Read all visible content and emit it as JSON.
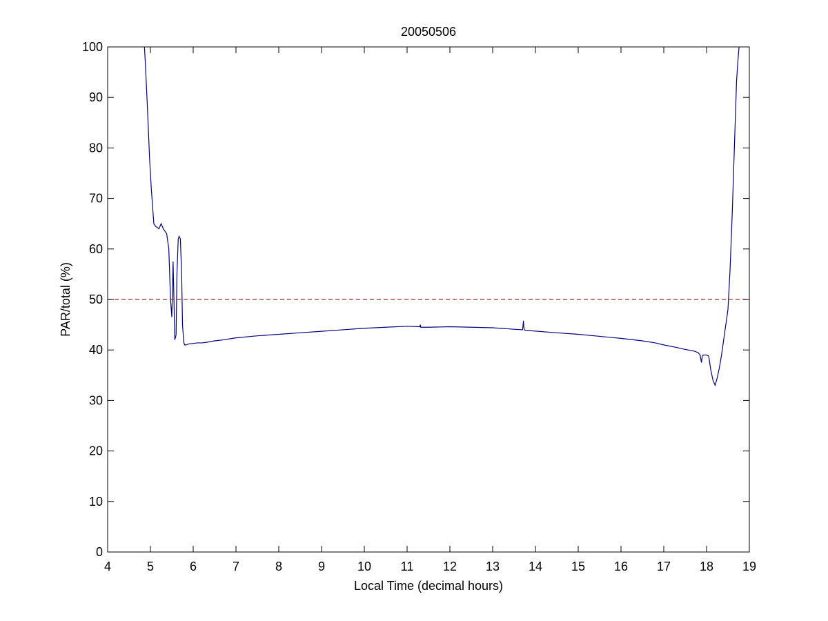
{
  "chart_data": {
    "type": "line",
    "title": "20050506",
    "xlabel": "Local Time (decimal hours)",
    "ylabel": "PAR/total (%)",
    "xlim": [
      4,
      19
    ],
    "ylim": [
      0,
      100
    ],
    "xticks": [
      4,
      5,
      6,
      7,
      8,
      9,
      10,
      11,
      12,
      13,
      14,
      15,
      16,
      17,
      18,
      19
    ],
    "yticks": [
      0,
      10,
      20,
      30,
      40,
      50,
      60,
      70,
      80,
      90,
      100
    ],
    "grid": false,
    "legend": "none",
    "series": [
      {
        "color": "#00007f",
        "x": [
          4.86,
          4.88,
          4.93,
          4.98,
          5.02,
          5.08,
          5.12,
          5.2,
          5.25,
          5.3,
          5.38,
          5.43,
          5.47,
          5.5,
          5.53,
          5.55,
          5.57,
          5.6,
          5.62,
          5.65,
          5.67,
          5.7,
          5.73,
          5.75,
          5.78,
          5.8,
          5.83,
          5.86,
          5.9,
          6.0,
          6.1,
          6.2,
          6.3,
          6.5,
          6.7,
          7.0,
          7.5,
          8.0,
          8.5,
          9.0,
          9.5,
          10.0,
          10.5,
          11.0,
          11.3,
          11.31,
          11.32,
          11.5,
          12.0,
          12.5,
          13.0,
          13.5,
          13.7,
          13.72,
          13.73,
          13.74,
          13.76,
          13.9,
          14.5,
          15.0,
          15.5,
          16.0,
          16.5,
          16.8,
          17.0,
          17.3,
          17.5,
          17.7,
          17.8,
          17.85,
          17.88,
          17.9,
          17.93,
          17.96,
          18.0,
          18.05,
          18.1,
          18.15,
          18.2,
          18.25,
          18.3,
          18.35,
          18.4,
          18.45,
          18.5,
          18.55,
          18.6,
          18.65,
          18.7,
          18.73,
          18.76
        ],
        "y": [
          100,
          97,
          88,
          78,
          72,
          65,
          64.5,
          64.0,
          65.0,
          64.0,
          63.0,
          60.0,
          50.0,
          46.5,
          57.5,
          50.0,
          42.0,
          43.0,
          55.0,
          62.0,
          62.5,
          62.0,
          55.0,
          45.0,
          41.5,
          41.0,
          41.0,
          41.1,
          41.2,
          41.3,
          41.4,
          41.4,
          41.5,
          41.8,
          42.0,
          42.4,
          42.8,
          43.1,
          43.4,
          43.7,
          44.0,
          44.3,
          44.5,
          44.7,
          44.6,
          45.0,
          44.5,
          44.5,
          44.6,
          44.5,
          44.4,
          44.1,
          44.0,
          45.8,
          44.5,
          44.0,
          43.9,
          43.8,
          43.4,
          43.1,
          42.7,
          42.3,
          41.8,
          41.4,
          41.0,
          40.5,
          40.1,
          39.8,
          39.5,
          39.0,
          37.5,
          38.8,
          39.0,
          39.0,
          39.0,
          38.8,
          36.0,
          34.0,
          33.0,
          34.5,
          36.5,
          39.0,
          42.0,
          45.0,
          48.0,
          56.0,
          67.0,
          80.0,
          93.0,
          97.0,
          100
        ]
      },
      {
        "color": "#b22222",
        "style": "dashed",
        "x": [
          4,
          19
        ],
        "y": [
          50,
          50
        ]
      }
    ]
  }
}
